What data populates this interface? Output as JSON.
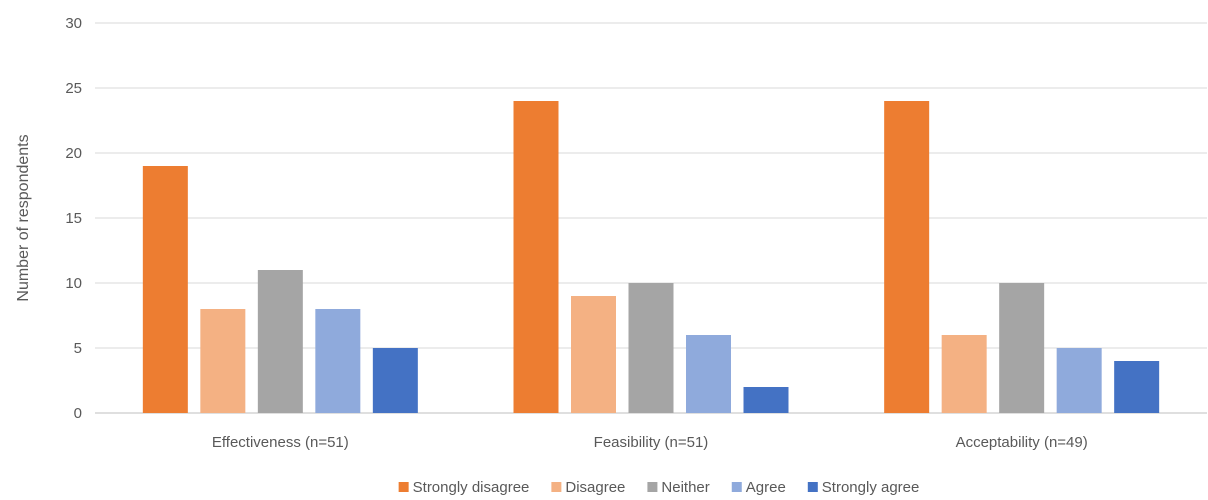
{
  "chart_data": {
    "type": "bar",
    "title": "",
    "xlabel": "",
    "ylabel": "Number of respondents",
    "ylim": [
      0,
      30
    ],
    "yticks": [
      0,
      5,
      10,
      15,
      20,
      25,
      30
    ],
    "grid": true,
    "legend_position": "bottom",
    "categories": [
      "Effectiveness (n=51)",
      "Feasibility (n=51)",
      "Acceptability (n=49)"
    ],
    "series": [
      {
        "name": "Strongly disagree",
        "color": "#ed7d31",
        "values": [
          19,
          24,
          24
        ]
      },
      {
        "name": "Disagree",
        "color": "#f4b183",
        "values": [
          8,
          9,
          6
        ]
      },
      {
        "name": "Neither",
        "color": "#a5a5a5",
        "values": [
          11,
          10,
          10
        ]
      },
      {
        "name": "Agree",
        "color": "#8faadc",
        "values": [
          8,
          6,
          5
        ]
      },
      {
        "name": "Strongly agree",
        "color": "#4472c4",
        "values": [
          5,
          2,
          4
        ]
      }
    ]
  }
}
